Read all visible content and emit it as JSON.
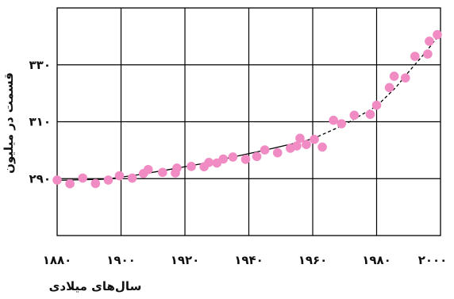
{
  "chart_data": {
    "type": "scatter",
    "title": "",
    "xlabel": "سال‌های میلادی",
    "ylabel": "قسمت در میلیون",
    "xlim": [
      1880,
      2000
    ],
    "ylim": [
      270,
      350
    ],
    "x_ticks": [
      1880,
      1900,
      1920,
      1940,
      1960,
      1980,
      2000
    ],
    "x_tick_labels": [
      "۱۸۸۰",
      "۱۹۰۰",
      "۱۹۲۰",
      "۱۹۴۰",
      "۱۹۶۰",
      "۱۹۸۰",
      "۲۰۰۰"
    ],
    "y_ticks": [
      290,
      310,
      330
    ],
    "y_tick_labels": [
      "۲۹۰",
      "۳۱۰",
      "۳۳۰"
    ],
    "grid": true,
    "series": [
      {
        "style": "markers",
        "color": "#f08cc3",
        "x": [
          1880,
          1884,
          1888,
          1892,
          1896,
          1899.5,
          1903.5,
          1907,
          1908.5,
          1913,
          1917,
          1917.5,
          1922,
          1926,
          1927.5,
          1930,
          1932,
          1935,
          1939,
          1942.5,
          1945,
          1949,
          1953,
          1955,
          1956,
          1958,
          1960.5,
          1963,
          1966.5,
          1969,
          1973,
          1978,
          1980,
          1984,
          1985.5,
          1989,
          1992,
          1996,
          1996.5,
          1999
        ],
        "y": [
          289.5,
          288.2,
          290.2,
          288.3,
          289.5,
          291.0,
          290.2,
          291.8,
          293.2,
          292.2,
          292.0,
          293.7,
          294.3,
          294.2,
          295.7,
          295.5,
          296.9,
          297.6,
          296.8,
          297.8,
          300.1,
          299.1,
          300.7,
          301.5,
          304.2,
          302.0,
          303.8,
          301.1,
          310.5,
          309.3,
          312.3,
          312.6,
          315.8,
          322.0,
          326.0,
          325.4,
          333.0,
          333.8,
          338.3,
          340.6
        ]
      },
      {
        "style": "trend-solid",
        "color": "#000000",
        "x": [
          1880,
          1895,
          1905,
          1915,
          1925,
          1935,
          1945,
          1955,
          1960
        ],
        "y": [
          289.4,
          289.8,
          291.3,
          293.2,
          295.2,
          297.6,
          300.0,
          302.6,
          304.0
        ]
      },
      {
        "style": "trend-dashed",
        "color": "#000000",
        "x": [
          1960,
          1970,
          1980,
          1986,
          1990,
          1995,
          2000
        ],
        "y": [
          304.0,
          309.0,
          315.5,
          322.0,
          327.5,
          334.0,
          341.0
        ]
      }
    ]
  }
}
